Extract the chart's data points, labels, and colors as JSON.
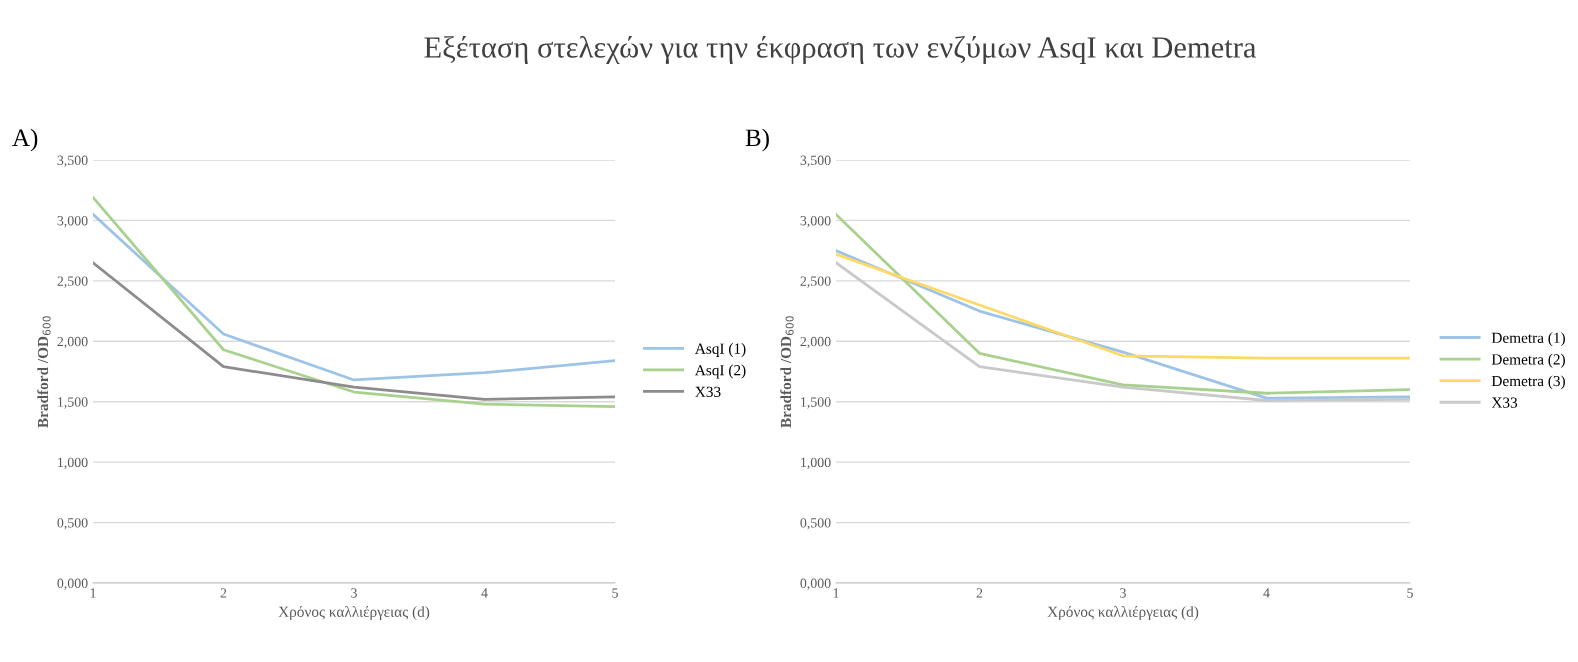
{
  "chart_data": [
    {
      "type": "line",
      "title": "Εξέταση στελεχών για την έκφραση των ενζύμων AsqI και Demetra",
      "annotations": [
        "A)"
      ],
      "xlabel": "Χρόνος καλλιέργειας (d)",
      "ylabel": "Bradford /OD$_{600}$",
      "x": [
        1,
        2,
        3,
        4,
        5
      ],
      "xlim": [
        1,
        5
      ],
      "xticks": [
        1,
        2,
        3,
        4,
        5
      ],
      "ylim": [
        0,
        3.5
      ],
      "yticks": [
        {
          "value": 0,
          "label": "0,000"
        },
        {
          "value": 0.5,
          "label": "0,500"
        },
        {
          "value": 1,
          "label": "1,000"
        },
        {
          "value": 1.5,
          "label": "1,500"
        },
        {
          "value": 2,
          "label": "2,000"
        },
        {
          "value": 2.5,
          "label": "2,500"
        },
        {
          "value": 3,
          "label": "3,000"
        },
        {
          "value": 3.5,
          "label": "3,500"
        }
      ],
      "grid": "y",
      "legend": "right",
      "marker": "none",
      "series": [
        {
          "name": "AsqI (1)",
          "color": "#9dc3e6",
          "values": [
            3.05,
            2.06,
            1.68,
            1.74,
            1.84
          ]
        },
        {
          "name": "AsqI (2)",
          "color": "#a9d18e",
          "values": [
            3.19,
            1.93,
            1.58,
            1.48,
            1.46
          ]
        },
        {
          "name": "X33",
          "color": "#8c8c8c",
          "values": [
            2.65,
            1.79,
            1.62,
            1.52,
            1.54
          ]
        }
      ]
    },
    {
      "type": "line",
      "annotations": [
        "B)"
      ],
      "xlabel": "Χρόνος καλλιέργειας (d)",
      "ylabel": "Bradford /OD$_{600}$",
      "x": [
        1,
        2,
        3,
        4,
        5
      ],
      "xlim": [
        1,
        5
      ],
      "xticks": [
        1,
        2,
        3,
        4,
        5
      ],
      "ylim": [
        0,
        3.5
      ],
      "yticks": [
        {
          "value": 0,
          "label": "0,000"
        },
        {
          "value": 0.5,
          "label": "0,500"
        },
        {
          "value": 1,
          "label": "1,000"
        },
        {
          "value": 1.5,
          "label": "1,500"
        },
        {
          "value": 2,
          "label": "2,000"
        },
        {
          "value": 2.5,
          "label": "2,500"
        },
        {
          "value": 3,
          "label": "3,000"
        },
        {
          "value": 3.5,
          "label": "3,500"
        }
      ],
      "grid": "y",
      "legend": "right",
      "marker": "none",
      "series": [
        {
          "name": "Demetra (1)",
          "color": "#9dc3e6",
          "values": [
            2.75,
            2.25,
            1.91,
            1.53,
            1.54
          ]
        },
        {
          "name": "Demetra (2)",
          "color": "#a9d18e",
          "values": [
            3.05,
            1.9,
            1.64,
            1.57,
            1.6
          ]
        },
        {
          "name": "Demetra (3)",
          "color": "#ffd966",
          "values": [
            2.72,
            2.3,
            1.88,
            1.86,
            1.86
          ]
        },
        {
          "name": "X33",
          "color": "#c9c9c9",
          "values": [
            2.65,
            1.79,
            1.62,
            1.51,
            1.52
          ]
        }
      ]
    }
  ]
}
